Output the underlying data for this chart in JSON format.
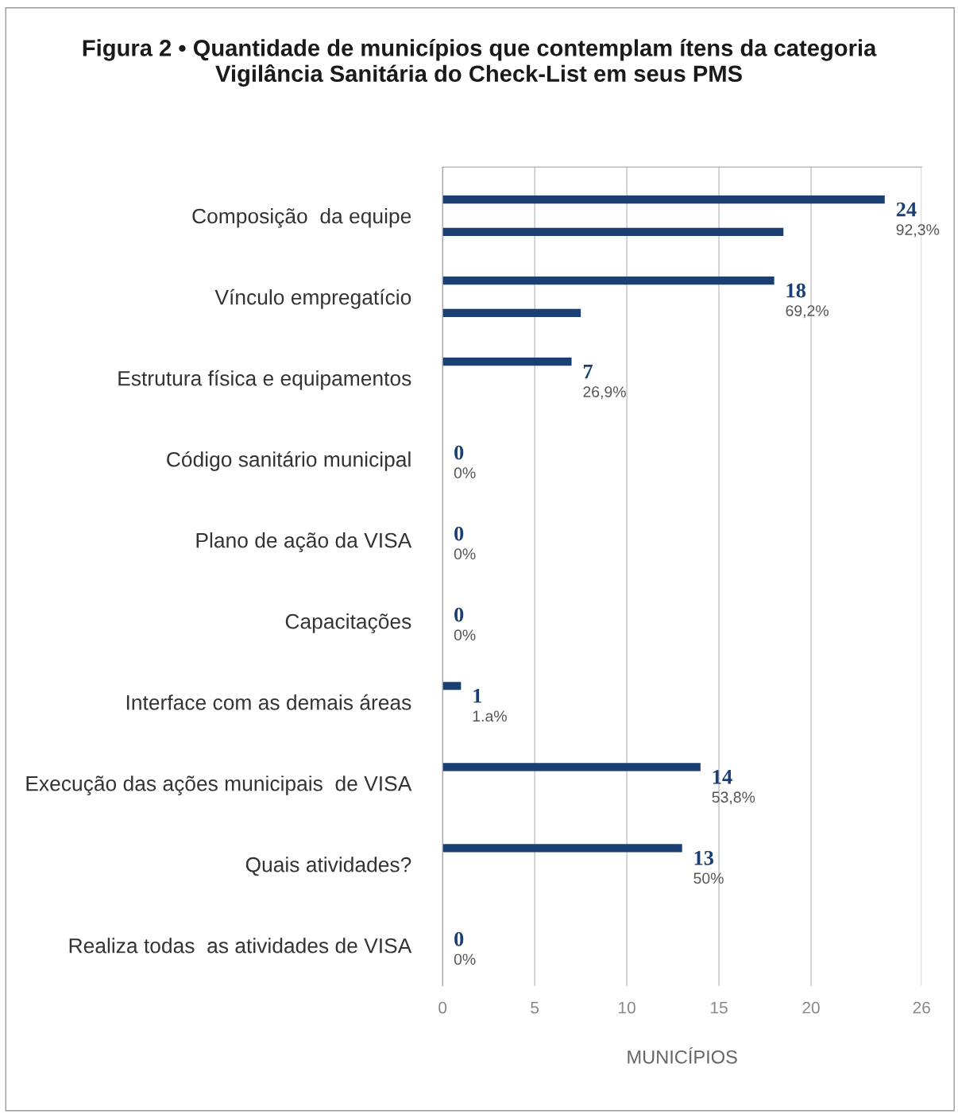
{
  "chart_data": {
    "type": "bar",
    "orientation": "horizontal",
    "title": "Figura 2 • Quantidade de municípios que contemplam ítens da categoria\nVigilância Sanitária do Check-List em seus PMS",
    "xlabel": "MUNICÍPIOS",
    "categories": [
      "Composição  da equipe",
      "Vínculo empregatício",
      "Estrutura física e equipamentos",
      "Código sanitário municipal",
      "Plano de ação da VISA",
      "Capacitações",
      "Interface com as demais áreas",
      "Execução das ações municipais  de VISA",
      "Quais atividades?",
      "Realiza todas  as atividades de VISA"
    ],
    "series": [
      {
        "color": "#1b3f73",
        "values": [
          24,
          18,
          7,
          0,
          0,
          0,
          1,
          14,
          13,
          0
        ],
        "value_labels": [
          "24\n92,3%",
          "18\n69,2%",
          "7\n26,9%",
          "0\n0%",
          "0\n0%",
          "0\n0%",
          "1\n1.a%",
          "14\n53,8%",
          "13\n50%",
          "0\n0%"
        ]
      },
      {
        "color": "#1b3f73",
        "values": [
          18.5,
          7.5,
          null,
          null,
          null,
          null,
          null,
          null,
          null,
          null
        ]
      }
    ],
    "xlim": [
      0,
      26
    ],
    "xticks": [
      0,
      5,
      10,
      15,
      20,
      26
    ],
    "grid": "x"
  }
}
